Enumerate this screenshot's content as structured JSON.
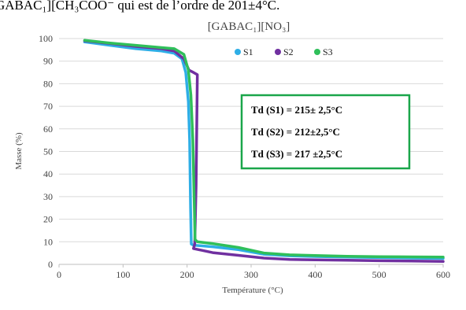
{
  "top_text": "GABAC₁][CH₃COO⁻ qui est de l’ordre de 201±4°C.",
  "chart_data": {
    "type": "line",
    "title": "[GABAC₁][NO₃]",
    "xlabel": "Température (°C)",
    "ylabel": "Masse (%)",
    "xlim": [
      0,
      600
    ],
    "ylim": [
      0,
      100
    ],
    "x_ticks": [
      "0",
      "100",
      "200",
      "300",
      "400",
      "500",
      "600"
    ],
    "y_ticks": [
      "0",
      "10",
      "20",
      "30",
      "40",
      "50",
      "60",
      "70",
      "80",
      "90",
      "100"
    ],
    "grid": "horizontal",
    "legend_position": "top-right",
    "series": [
      {
        "name": "S1",
        "color": "#2eaee6",
        "points": [
          [
            40,
            98.5
          ],
          [
            80,
            97.0
          ],
          [
            120,
            95.5
          ],
          [
            160,
            94.5
          ],
          [
            180,
            93.5
          ],
          [
            192,
            91.0
          ],
          [
            198,
            85.0
          ],
          [
            202,
            72.0
          ],
          [
            204,
            55.0
          ],
          [
            205.5,
            25.0
          ],
          [
            206.5,
            9.0
          ],
          [
            210,
            8.5
          ],
          [
            240,
            7.8
          ],
          [
            280,
            6.5
          ],
          [
            320,
            4.5
          ],
          [
            360,
            3.8
          ],
          [
            400,
            3.5
          ],
          [
            450,
            3.2
          ],
          [
            500,
            3.0
          ],
          [
            550,
            2.8
          ],
          [
            600,
            2.6
          ]
        ]
      },
      {
        "name": "S2",
        "color": "#7030a0",
        "points": [
          [
            40,
            99.0
          ],
          [
            80,
            97.8
          ],
          [
            120,
            96.5
          ],
          [
            160,
            95.5
          ],
          [
            180,
            94.5
          ],
          [
            195,
            91.0
          ],
          [
            203,
            86.0
          ],
          [
            210,
            85.0
          ],
          [
            216,
            84.0
          ],
          [
            214,
            35.0
          ],
          [
            212,
            9.0
          ],
          [
            210,
            7.0
          ],
          [
            240,
            5.2
          ],
          [
            280,
            4.0
          ],
          [
            320,
            2.8
          ],
          [
            360,
            2.2
          ],
          [
            400,
            2.0
          ],
          [
            450,
            1.8
          ],
          [
            500,
            1.6
          ],
          [
            550,
            1.5
          ],
          [
            600,
            1.3
          ]
        ]
      },
      {
        "name": "S3",
        "color": "#2fbf5a",
        "points": [
          [
            40,
            99.2
          ],
          [
            80,
            98.0
          ],
          [
            120,
            97.0
          ],
          [
            160,
            96.0
          ],
          [
            180,
            95.5
          ],
          [
            195,
            93.0
          ],
          [
            202,
            86.0
          ],
          [
            206,
            75.0
          ],
          [
            209,
            55.0
          ],
          [
            211,
            30.0
          ],
          [
            212.5,
            11.0
          ],
          [
            216,
            10.0
          ],
          [
            240,
            9.2
          ],
          [
            280,
            7.5
          ],
          [
            320,
            5.0
          ],
          [
            360,
            4.2
          ],
          [
            400,
            3.9
          ],
          [
            450,
            3.6
          ],
          [
            500,
            3.4
          ],
          [
            550,
            3.3
          ],
          [
            600,
            3.2
          ]
        ]
      }
    ],
    "annotations": [
      "Td (S1) = 215± 2,5°C",
      "Td (S2) = 212±2,5°C",
      "Td (S3) = 217 ±2,5°C"
    ],
    "annotation_box_color": "#1aa64a"
  }
}
